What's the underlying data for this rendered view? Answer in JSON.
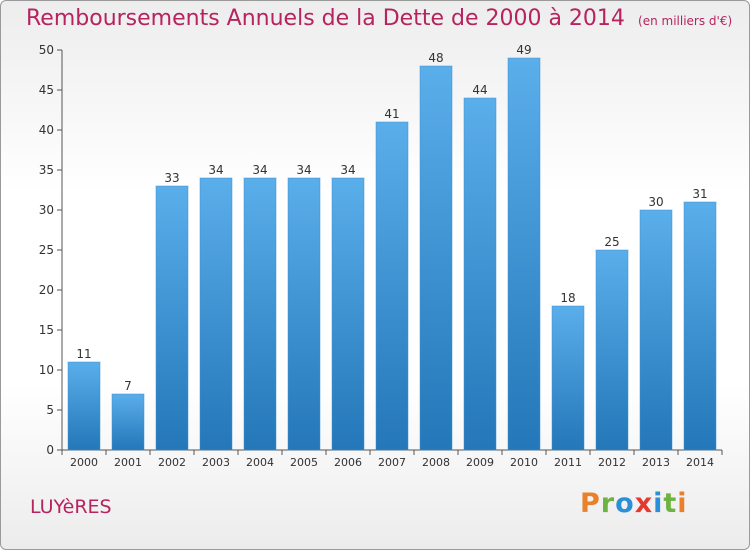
{
  "title": "Remboursements Annuels de la Dette de 2000 à 2014",
  "unit_note": "(en milliers d'€)",
  "commune": "LUYèRES",
  "logo": {
    "letters": [
      "P",
      "r",
      "o",
      "x",
      "i",
      "t",
      "i"
    ],
    "colors": [
      "#e8812a",
      "#6cb33f",
      "#2a8fd6",
      "#e23a2f",
      "#2a8fd6",
      "#6cb33f",
      "#e8812a"
    ]
  },
  "colors": {
    "bar_top": "#5aaeea",
    "bar_bottom": "#2477b8",
    "title": "#b6235f",
    "text": "#333333"
  },
  "chart_data": {
    "type": "bar",
    "categories": [
      "2000",
      "2001",
      "2002",
      "2003",
      "2004",
      "2005",
      "2006",
      "2007",
      "2008",
      "2009",
      "2010",
      "2011",
      "2012",
      "2013",
      "2014"
    ],
    "values": [
      11,
      7,
      33,
      34,
      34,
      34,
      34,
      41,
      48,
      44,
      49,
      18,
      25,
      30,
      31
    ],
    "yticks": [
      0,
      5,
      10,
      15,
      20,
      25,
      30,
      35,
      40,
      45,
      50
    ],
    "ylim": [
      0,
      50
    ],
    "grid": false,
    "legend": false
  }
}
